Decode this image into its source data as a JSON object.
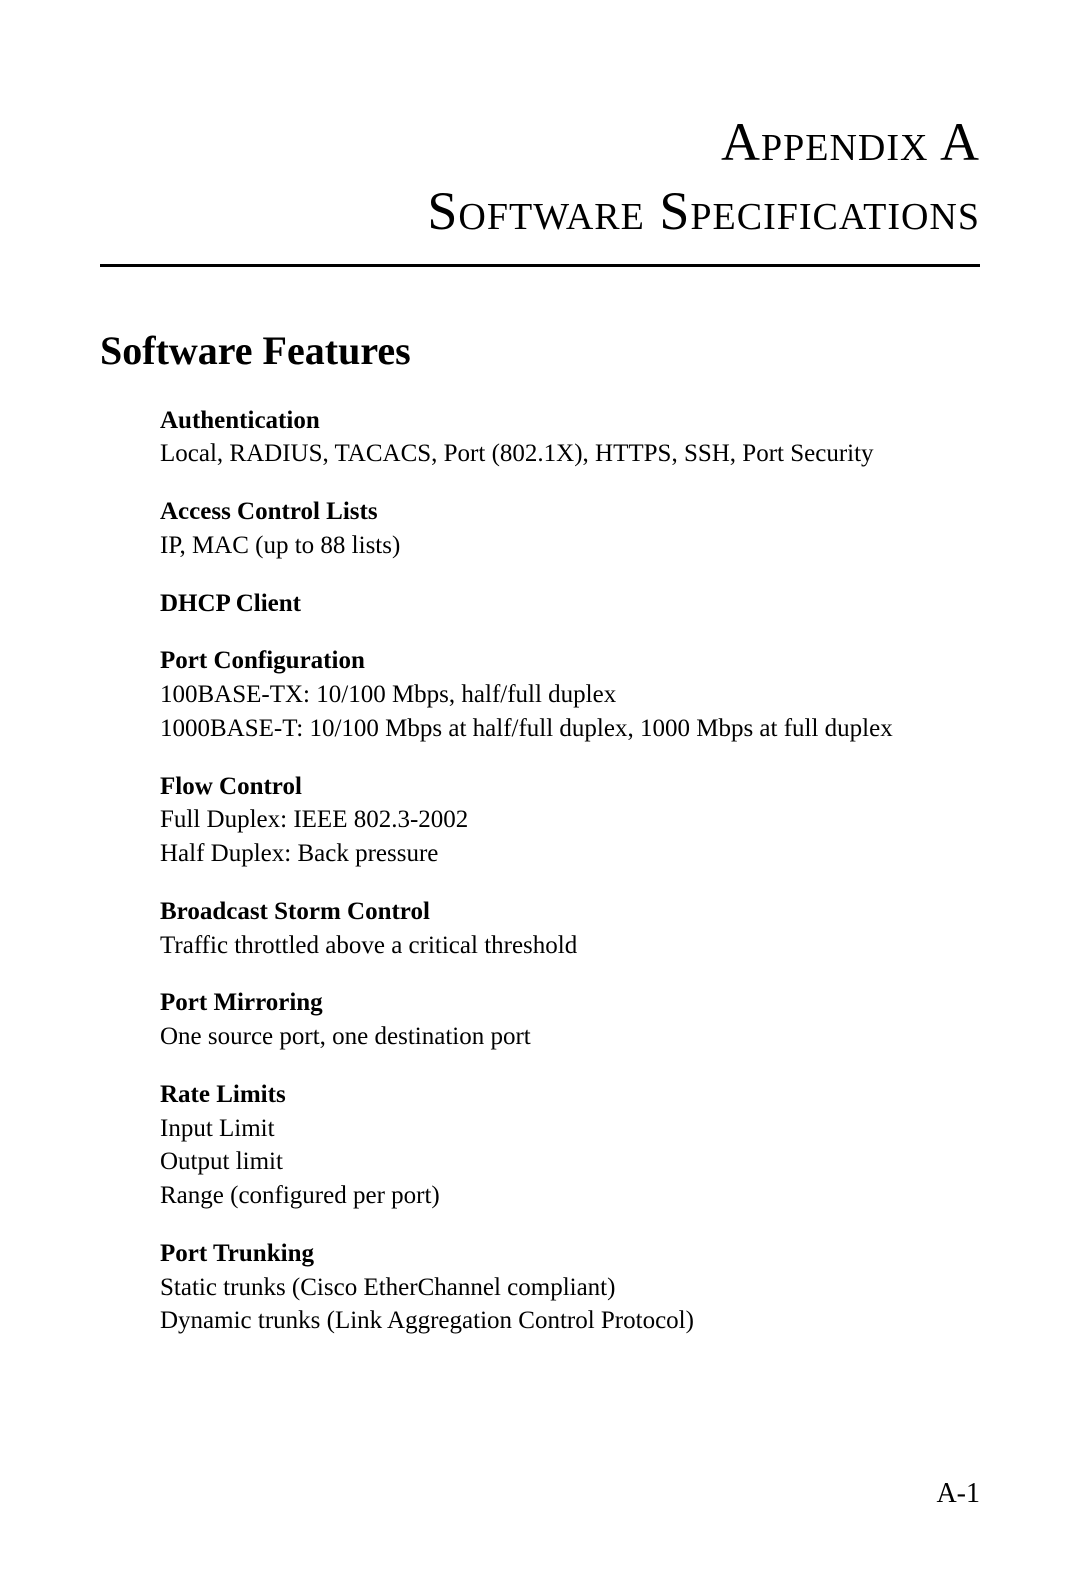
{
  "appendix_label": "Appendix A",
  "title": "Software Specifications",
  "section_heading": "Software Features",
  "features": [
    {
      "title": "Authentication",
      "lines": [
        "Local, RADIUS, TACACS, Port (802.1X), HTTPS, SSH, Port Security"
      ]
    },
    {
      "title": "Access Control Lists",
      "lines": [
        "IP, MAC (up to 88 lists)"
      ]
    },
    {
      "title": "DHCP Client",
      "lines": []
    },
    {
      "title": "Port Configuration",
      "lines": [
        "100BASE-TX: 10/100 Mbps, half/full duplex",
        "1000BASE-T: 10/100 Mbps at half/full duplex, 1000 Mbps at full duplex"
      ]
    },
    {
      "title": "Flow Control",
      "lines": [
        "Full Duplex: IEEE 802.3-2002",
        "Half Duplex: Back pressure"
      ]
    },
    {
      "title": "Broadcast Storm Control",
      "lines": [
        "Traffic throttled above a critical threshold"
      ]
    },
    {
      "title": "Port Mirroring",
      "lines": [
        "One source port, one destination port"
      ]
    },
    {
      "title": "Rate Limits",
      "lines": [
        "Input Limit",
        "Output limit",
        "Range (configured per port)"
      ]
    },
    {
      "title": "Port Trunking",
      "lines": [
        "Static trunks (Cisco EtherChannel compliant)",
        "Dynamic trunks (Link Aggregation Control Protocol)"
      ]
    }
  ],
  "page_number": "A-1"
}
